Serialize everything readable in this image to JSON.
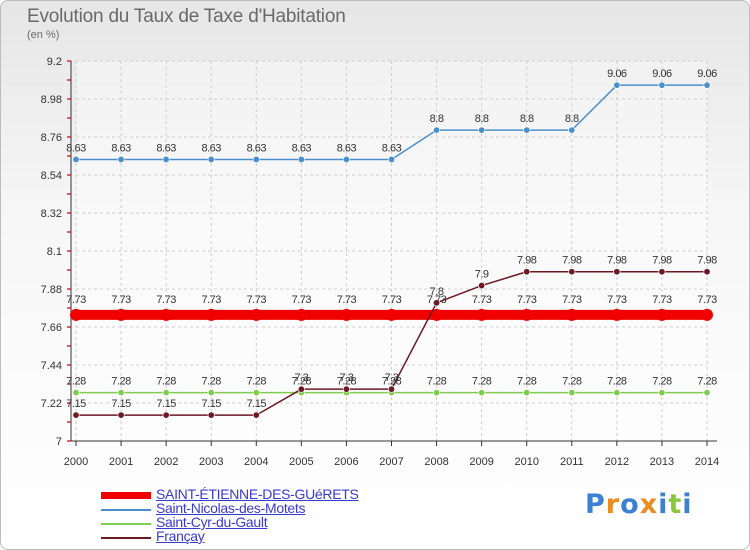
{
  "title": "Evolution du Taux de Taxe d'Habitation",
  "unit_label": "(en %)",
  "brand": {
    "letters": [
      "P",
      "r",
      "o",
      "x",
      "i",
      "t",
      "i"
    ],
    "colors": [
      "#3d7fd0",
      "#ea8c1f",
      "#3d7fd0",
      "#ea8c1f",
      "#3d7fd0",
      "#8cc63f",
      "#3d7fd0"
    ]
  },
  "chart_data": {
    "type": "line",
    "x": [
      2000,
      2001,
      2002,
      2003,
      2004,
      2005,
      2006,
      2007,
      2008,
      2009,
      2010,
      2011,
      2012,
      2013,
      2014
    ],
    "ylim": [
      7,
      9.2
    ],
    "yticks": [
      7,
      7.22,
      7.44,
      7.66,
      7.88,
      8.1,
      8.32,
      8.54,
      8.76,
      8.98,
      9.2
    ],
    "grid": true,
    "legend_position": "bottom-left",
    "series": [
      {
        "name": "SAINT-ÉTIENNE-DES-GUéRETS",
        "color": "#f00000",
        "values": [
          7.73,
          7.73,
          7.73,
          7.73,
          7.73,
          7.73,
          7.73,
          7.73,
          7.73,
          7.73,
          7.73,
          7.73,
          7.73,
          7.73,
          7.73
        ],
        "labels": [
          "7.73",
          "7.73",
          "7.73",
          "7.73",
          "7.73",
          "7.73",
          "7.73",
          "7.73",
          "7.73",
          "7.73",
          "7.73",
          "7.73",
          "7.73",
          "7.73",
          "7.73"
        ]
      },
      {
        "name": "Saint-Nicolas-des-Motets",
        "color": "#4a8fcc",
        "values": [
          8.63,
          8.63,
          8.63,
          8.63,
          8.63,
          8.63,
          8.63,
          8.63,
          8.8,
          8.8,
          8.8,
          8.8,
          9.06,
          9.06,
          9.06
        ],
        "labels": [
          "8.63",
          "8.63",
          "8.63",
          "8.63",
          "8.63",
          "8.63",
          "8.63",
          "8.63",
          "8.8",
          "8.8",
          "8.8",
          "8.8",
          "9.06",
          "9.06",
          "9.06"
        ]
      },
      {
        "name": "Saint-Cyr-du-Gault",
        "color": "#7fcc4f",
        "values": [
          7.28,
          7.28,
          7.28,
          7.28,
          7.28,
          7.28,
          7.28,
          7.28,
          7.28,
          7.28,
          7.28,
          7.28,
          7.28,
          7.28,
          7.28
        ],
        "labels": [
          "7.28",
          "7.28",
          "7.28",
          "7.28",
          "7.28",
          "7.28",
          "7.28",
          "7.28",
          "7.28",
          "7.28",
          "7.28",
          "7.28",
          "7.28",
          "7.28",
          "7.28"
        ]
      },
      {
        "name": "Françay",
        "color": "#6b1a24",
        "values": [
          7.15,
          7.15,
          7.15,
          7.15,
          7.15,
          7.3,
          7.3,
          7.3,
          7.8,
          7.9,
          7.98,
          7.98,
          7.98,
          7.98,
          7.98
        ],
        "labels": [
          "7.15",
          "7.15",
          "7.15",
          "7.15",
          "7.15",
          "7.3",
          "7.3",
          "7.3",
          "7.8",
          "7.9",
          "7.98",
          "7.98",
          "7.98",
          "7.98",
          "7.98"
        ]
      }
    ]
  }
}
